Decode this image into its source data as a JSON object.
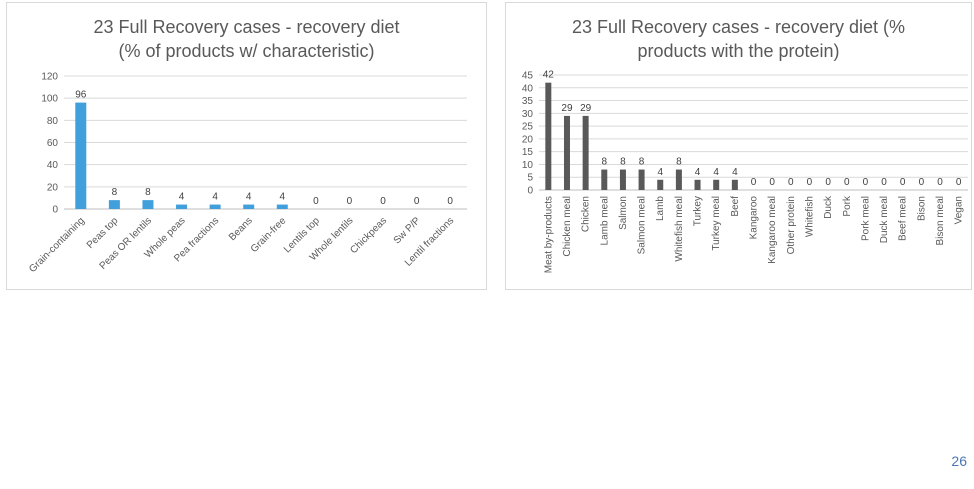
{
  "page_number": "26",
  "chart_data": [
    {
      "type": "bar",
      "title_lines": [
        "23 Full Recovery cases - recovery diet",
        "(% of products w/ characteristic)"
      ],
      "categories": [
        "Grain-containing",
        "Peas top",
        "Peas OR lentils",
        "Whole peas",
        "Pea fractions",
        "Beans",
        "Grain-free",
        "Lentils top",
        "Whole lentils",
        "Chickpeas",
        "Sw P/P",
        "Lentil fractions"
      ],
      "values": [
        96,
        8,
        8,
        4,
        4,
        4,
        4,
        0,
        0,
        0,
        0,
        0
      ],
      "yticks": [
        0,
        20,
        40,
        60,
        80,
        100,
        120
      ],
      "ylim": [
        0,
        120
      ],
      "bar_color": "#41a0dc",
      "grid": true
    },
    {
      "type": "bar",
      "title_lines": [
        "23 Full Recovery cases - recovery diet (%",
        "products with the protein)"
      ],
      "categories": [
        "Meat by-products",
        "Chicken meal",
        "Chicken",
        "Lamb meal",
        "Salmon",
        "Salmon meal",
        "Lamb",
        "Whitefish meal",
        "Turkey",
        "Turkey meal",
        "Beef",
        "Kangaroo",
        "Kangaroo meal",
        "Other protein",
        "Whitefish",
        "Duck",
        "Pork",
        "Pork meal",
        "Duck meal",
        "Beef meal",
        "Bison",
        "Bison meal",
        "Vegan"
      ],
      "values": [
        42,
        29,
        29,
        8,
        8,
        8,
        4,
        8,
        4,
        4,
        4,
        0,
        0,
        0,
        0,
        0,
        0,
        0,
        0,
        0,
        0,
        0,
        0
      ],
      "yticks": [
        0,
        5,
        10,
        15,
        20,
        25,
        30,
        35,
        40,
        45
      ],
      "ylim": [
        0,
        45
      ],
      "bar_color": "#595959",
      "grid": true
    }
  ]
}
